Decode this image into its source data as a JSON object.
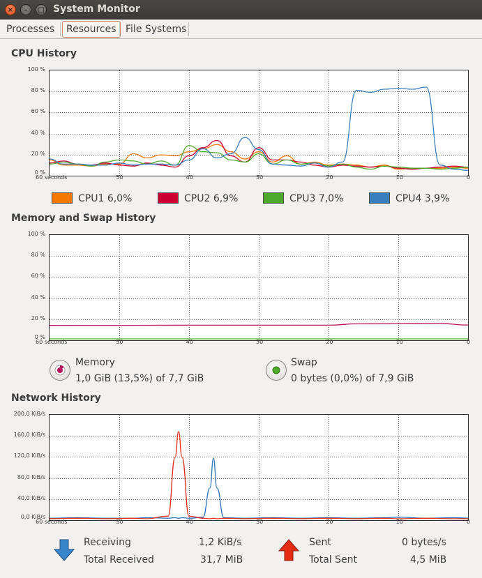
{
  "window": {
    "title": "System Monitor",
    "close_glyph": "×",
    "min_glyph": "–",
    "max_glyph": "□"
  },
  "tabs": [
    {
      "label": "Processes",
      "selected": false
    },
    {
      "label": "Resources",
      "selected": true
    },
    {
      "label": "File Systems",
      "selected": false
    }
  ],
  "cpu": {
    "title": "CPU History",
    "y_labels": [
      "100 %",
      "80 %",
      "60 %",
      "40 %",
      "20 %",
      "0 %"
    ],
    "x_labels": [
      "60 seconds",
      "50",
      "40",
      "30",
      "20",
      "10",
      "0"
    ],
    "legend": [
      {
        "label": "CPU1",
        "value": "6,0%",
        "color": "#f57900"
      },
      {
        "label": "CPU2",
        "value": "6,9%",
        "color": "#cc0033"
      },
      {
        "label": "CPU3",
        "value": "7,0%",
        "color": "#4eaa2a"
      },
      {
        "label": "CPU4",
        "value": "3,9%",
        "color": "#3a7fbd"
      }
    ]
  },
  "memory": {
    "title": "Memory and Swap History",
    "y_labels": [
      "100 %",
      "80 %",
      "60 %",
      "40 %",
      "20 %",
      "0 %"
    ],
    "x_labels": [
      "60 seconds",
      "50",
      "40",
      "30",
      "20",
      "10",
      "0"
    ],
    "memory_label": "Memory",
    "memory_value": "1,0 GiB (13,5%) of 7,7 GiB",
    "memory_color": "#b8125c",
    "swap_label": "Swap",
    "swap_value": "0 bytes (0,0%) of 7,9 GiB",
    "swap_color": "#4eaa2a"
  },
  "network": {
    "title": "Network History",
    "y_labels": [
      "200,0 KiB/s",
      "160,0 KiB/s",
      "120,0 KiB/s",
      "80,0 KiB/s",
      "40,0 KiB/s",
      "0,0 KiB/s"
    ],
    "x_labels": [
      "60 seconds",
      "50",
      "40",
      "30",
      "20",
      "10",
      "0"
    ],
    "receiving_label": "Receiving",
    "receiving_value": "1,2 KiB/s",
    "total_received_label": "Total Received",
    "total_received_value": "31,7 MiB",
    "sent_label": "Sent",
    "sent_value": "0 bytes/s",
    "total_sent_label": "Total Sent",
    "total_sent_value": "4,5 MiB",
    "receiving_color": "#2f74b7",
    "sent_color": "#e02a14"
  },
  "chart_data": [
    {
      "type": "line",
      "title": "CPU History",
      "xlabel": "seconds",
      "ylabel": "%",
      "xlim": [
        60,
        0
      ],
      "ylim": [
        0,
        100
      ],
      "x": [
        60,
        58,
        56,
        54,
        52,
        50,
        48,
        46,
        44,
        42,
        40,
        38,
        36,
        34,
        32,
        30,
        28,
        26,
        24,
        22,
        20,
        18,
        16,
        14,
        12,
        10,
        8,
        6,
        4,
        2,
        0
      ],
      "series": [
        {
          "name": "CPU1",
          "values": [
            14,
            9,
            9,
            8,
            10,
            10,
            20,
            16,
            19,
            18,
            22,
            25,
            29,
            22,
            15,
            22,
            12,
            18,
            10,
            12,
            9,
            10,
            9,
            7,
            9,
            5,
            6,
            6,
            6,
            7,
            6
          ]
        },
        {
          "name": "CPU2",
          "values": [
            11,
            13,
            10,
            9,
            11,
            9,
            8,
            11,
            9,
            7,
            18,
            26,
            33,
            18,
            12,
            26,
            14,
            14,
            12,
            9,
            7,
            9,
            8,
            7,
            8,
            6,
            5,
            6,
            7,
            8,
            6.9
          ]
        },
        {
          "name": "CPU3",
          "values": [
            10,
            12,
            10,
            8,
            12,
            14,
            13,
            10,
            13,
            9,
            28,
            22,
            21,
            14,
            12,
            20,
            10,
            14,
            10,
            11,
            8,
            10,
            7,
            5,
            8,
            7,
            6,
            6,
            5,
            6,
            7
          ]
        },
        {
          "name": "CPU4",
          "values": [
            15,
            10,
            10,
            9,
            9,
            11,
            9,
            10,
            10,
            9,
            14,
            25,
            16,
            20,
            36,
            24,
            10,
            9,
            8,
            11,
            7,
            12,
            82,
            80,
            83,
            84,
            83,
            85,
            9,
            5,
            3.9
          ]
        }
      ]
    },
    {
      "type": "line",
      "title": "Memory and Swap History",
      "xlabel": "seconds",
      "ylabel": "%",
      "xlim": [
        60,
        0
      ],
      "ylim": [
        0,
        100
      ],
      "x": [
        60,
        50,
        40,
        30,
        20,
        16,
        10,
        4,
        0
      ],
      "series": [
        {
          "name": "Memory",
          "values": [
            13.1,
            13.2,
            13.3,
            13.3,
            13.3,
            14.6,
            14.7,
            15.0,
            13.5
          ]
        },
        {
          "name": "Swap",
          "values": [
            0,
            0,
            0,
            0,
            0,
            0,
            0,
            0,
            0
          ]
        }
      ]
    },
    {
      "type": "line",
      "title": "Network History",
      "xlabel": "seconds",
      "ylabel": "KiB/s",
      "xlim": [
        60,
        0
      ],
      "ylim": [
        0,
        200
      ],
      "x": [
        60,
        56,
        52,
        48,
        46,
        43,
        42,
        41.5,
        41,
        40,
        38,
        37,
        36.5,
        36,
        35,
        32,
        28,
        24,
        20,
        16,
        12,
        10,
        6,
        2,
        0
      ],
      "series": [
        {
          "name": "Receiving",
          "values": [
            1,
            2,
            1,
            1,
            2,
            1,
            2,
            1,
            2,
            1,
            3,
            60,
            118,
            60,
            2,
            1,
            2,
            1,
            2,
            1,
            2,
            3,
            1,
            2,
            1.2
          ]
        },
        {
          "name": "Sent",
          "values": [
            0,
            1,
            0,
            1,
            0,
            5,
            120,
            170,
            120,
            5,
            1,
            0,
            1,
            0,
            1,
            0,
            1,
            0,
            1,
            0,
            1,
            0,
            1,
            0,
            0
          ]
        }
      ]
    }
  ]
}
